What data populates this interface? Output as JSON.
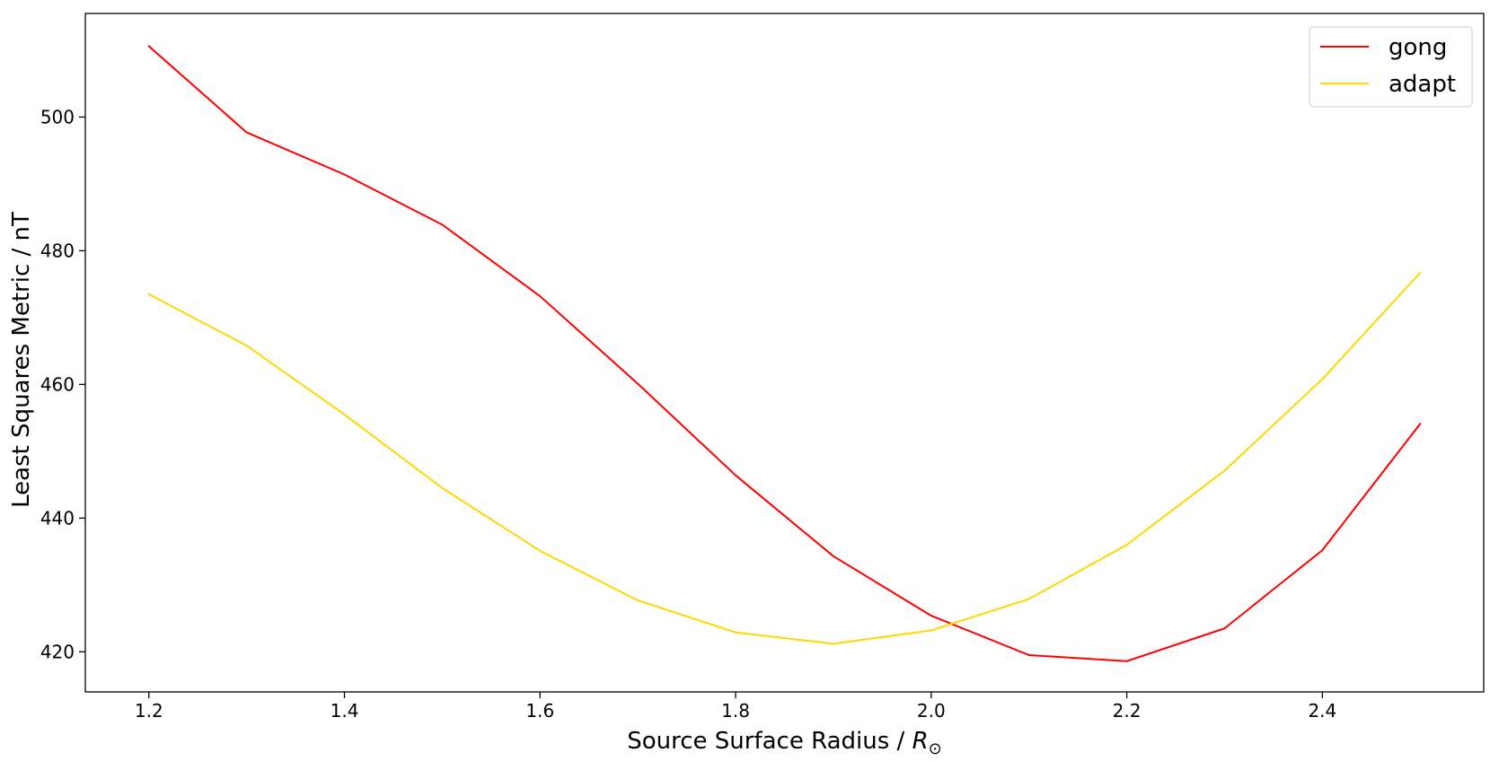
{
  "chart_data": {
    "type": "line",
    "title": "",
    "xlabel": "Source Surface Radius / ",
    "xlabel_symbol": "R",
    "xlabel_subscript": "⊙",
    "ylabel": "Least Squares Metric / nT",
    "x": [
      1.2,
      1.3,
      1.4,
      1.5,
      1.6,
      1.7,
      1.8,
      1.9,
      2.0,
      2.1,
      2.2,
      2.3,
      2.4,
      2.5
    ],
    "xlim": [
      1.135,
      2.565
    ],
    "ylim": [
      414,
      515.5
    ],
    "xticks": [
      1.2,
      1.4,
      1.6,
      1.8,
      2.0,
      2.2,
      2.4
    ],
    "xtick_labels": [
      "1.2",
      "1.4",
      "1.6",
      "1.8",
      "2.0",
      "2.2",
      "2.4"
    ],
    "yticks": [
      420,
      440,
      460,
      480,
      500
    ],
    "ytick_labels": [
      "420",
      "440",
      "460",
      "480",
      "500"
    ],
    "grid": false,
    "legend_position": "top-right",
    "series": [
      {
        "name": "gong",
        "color": "#ff0000",
        "values": [
          510.6,
          497.7,
          491.4,
          483.9,
          473.2,
          460.1,
          446.4,
          434.3,
          425.4,
          419.5,
          418.6,
          423.5,
          435.2,
          454.1
        ]
      },
      {
        "name": "adapt",
        "color": "#ffd700",
        "values": [
          473.5,
          465.8,
          455.5,
          444.5,
          435.1,
          427.7,
          422.9,
          421.2,
          423.2,
          427.9,
          436.0,
          447.1,
          460.8,
          476.7
        ]
      }
    ]
  }
}
